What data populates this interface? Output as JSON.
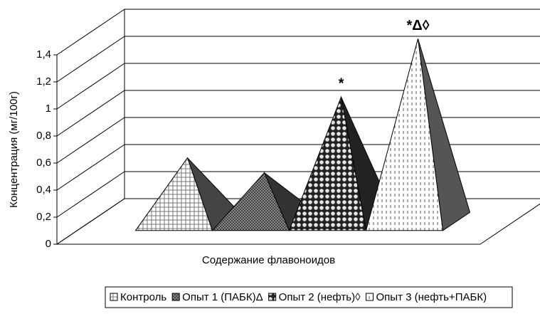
{
  "chart_data": {
    "type": "pyramid3d",
    "y_label": "Концентрация (мг/100г)",
    "categories": [
      "Содержание флавоноидов"
    ],
    "series": [
      {
        "name": "Контроль",
        "color": "#d9d9d9",
        "values": [
          0.47
        ]
      },
      {
        "name": "Опыт 1 (ПАБК)Δ",
        "color": "#808080",
        "values": [
          0.36
        ]
      },
      {
        "name": "Опыт 2 (нефть)◊",
        "color": "#404040",
        "values": [
          0.92
        ],
        "annotation": "*"
      },
      {
        "name": "Опыт 3 (нефть+ПАБК)",
        "color": "#ffffff",
        "values": [
          1.35
        ],
        "annotation": "*Δ◊"
      }
    ],
    "ylim": [
      0,
      1.4
    ],
    "yticks": [
      0,
      {
        "value": 0.2,
        "label": "0,2"
      },
      {
        "value": 0.4,
        "label": "0,4"
      },
      {
        "value": 0.6,
        "label": "0,6"
      },
      {
        "value": 0.8,
        "label": "0,8"
      },
      1,
      {
        "value": 1.2,
        "label": "1,2"
      },
      {
        "value": 1.4,
        "label": "1,4"
      }
    ],
    "grid": true,
    "legend": "bottom"
  }
}
